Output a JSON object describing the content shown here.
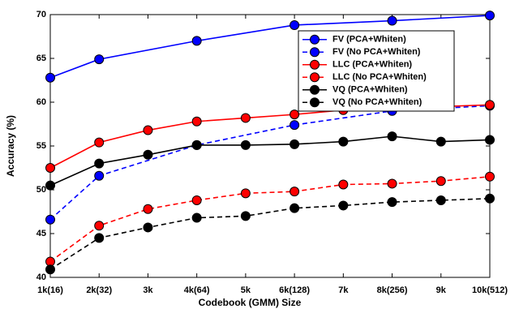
{
  "chart_data": {
    "type": "line",
    "xlabel": "Codebook (GMM) Size",
    "ylabel": "Accuracy (%)",
    "xlim": [
      1,
      10
    ],
    "xticks": [
      {
        "value": 1,
        "label": "1k(16)"
      },
      {
        "value": 2,
        "label": "2k(32)"
      },
      {
        "value": 3,
        "label": "3k"
      },
      {
        "value": 4,
        "label": "4k(64)"
      },
      {
        "value": 5,
        "label": "5k"
      },
      {
        "value": 6,
        "label": "6k(128)"
      },
      {
        "value": 7,
        "label": "7k"
      },
      {
        "value": 8,
        "label": "8k(256)"
      },
      {
        "value": 9,
        "label": "9k"
      },
      {
        "value": 10,
        "label": "10k(512)"
      }
    ],
    "ylim": [
      40,
      70
    ],
    "yticks": [
      40,
      45,
      50,
      55,
      60,
      65,
      70
    ],
    "legend": "upper right",
    "series": [
      {
        "name": "FV (PCA+Whiten)",
        "color": "#0000ff",
        "dashed": false,
        "x": [
          1,
          2,
          4,
          6,
          8,
          10
        ],
        "values": [
          62.8,
          64.9,
          67.0,
          68.8,
          69.3,
          69.9
        ]
      },
      {
        "name": "FV (No PCA+Whiten)",
        "color": "#0000ff",
        "dashed": true,
        "x": [
          1,
          2,
          4,
          6,
          8,
          10
        ],
        "values": [
          46.6,
          51.6,
          55.1,
          57.4,
          59.0,
          59.6
        ]
      },
      {
        "name": "LLC (PCA+Whiten)",
        "color": "#ff0000",
        "dashed": false,
        "x": [
          1,
          2,
          3,
          4,
          5,
          6,
          7,
          8,
          9,
          10
        ],
        "values": [
          52.5,
          55.4,
          56.8,
          57.8,
          58.2,
          58.6,
          59.1,
          59.5,
          59.5,
          59.7
        ]
      },
      {
        "name": "LLC (No PCA+Whiten)",
        "color": "#ff0000",
        "dashed": true,
        "x": [
          1,
          2,
          3,
          4,
          5,
          6,
          7,
          8,
          9,
          10
        ],
        "values": [
          41.8,
          45.9,
          47.8,
          48.8,
          49.6,
          49.8,
          50.6,
          50.7,
          51.0,
          51.5
        ]
      },
      {
        "name": "VQ (PCA+Whiten)",
        "color": "#000000",
        "dashed": false,
        "x": [
          1,
          2,
          3,
          4,
          5,
          6,
          7,
          8,
          9,
          10
        ],
        "values": [
          50.5,
          53.0,
          54.0,
          55.1,
          55.1,
          55.2,
          55.5,
          56.1,
          55.5,
          55.7
        ]
      },
      {
        "name": "VQ (No PCA+Whiten)",
        "color": "#000000",
        "dashed": true,
        "x": [
          1,
          2,
          3,
          4,
          5,
          6,
          7,
          8,
          9,
          10
        ],
        "values": [
          40.9,
          44.5,
          45.7,
          46.8,
          47.0,
          47.9,
          48.2,
          48.6,
          48.8,
          49.0
        ]
      }
    ]
  }
}
